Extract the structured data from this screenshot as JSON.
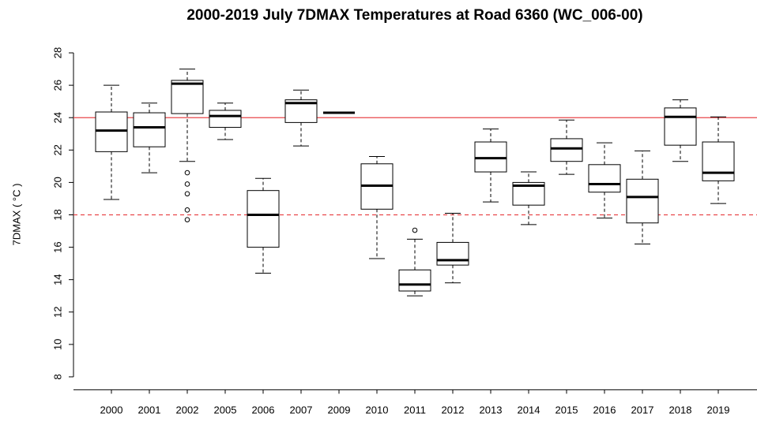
{
  "chart_data": {
    "type": "box",
    "title": "2000-2019 July 7DMAX Temperatures at Road 6360 (WC_006-00)",
    "y_label": "7DMAX ( °C )",
    "categories": [
      "2000",
      "2001",
      "2002",
      "2005",
      "2006",
      "2007",
      "2009",
      "2010",
      "2011",
      "2012",
      "2013",
      "2014",
      "2015",
      "2016",
      "2017",
      "2018",
      "2019"
    ],
    "boxes": [
      {
        "min": 18.95,
        "q1": 21.9,
        "median": 23.2,
        "q3": 24.35,
        "max": 26.0,
        "outliers": []
      },
      {
        "min": 20.6,
        "q1": 22.2,
        "median": 23.4,
        "q3": 24.3,
        "max": 24.9,
        "outliers": []
      },
      {
        "min": 21.3,
        "q1": 24.25,
        "median": 26.1,
        "q3": 26.3,
        "max": 27.0,
        "outliers": [
          20.6,
          19.9,
          19.3,
          18.3,
          17.7
        ]
      },
      {
        "min": 22.65,
        "q1": 23.4,
        "median": 24.1,
        "q3": 24.45,
        "max": 24.9,
        "outliers": []
      },
      {
        "min": 14.4,
        "q1": 16.0,
        "median": 18.0,
        "q3": 19.5,
        "max": 20.25,
        "outliers": []
      },
      {
        "min": 22.25,
        "q1": 23.7,
        "median": 24.9,
        "q3": 25.1,
        "max": 25.7,
        "outliers": []
      },
      {
        "min": 24.3,
        "q1": 24.3,
        "median": 24.3,
        "q3": 24.3,
        "max": 24.3,
        "outliers": []
      },
      {
        "min": 15.3,
        "q1": 18.35,
        "median": 19.8,
        "q3": 21.15,
        "max": 21.6,
        "outliers": []
      },
      {
        "min": 13.0,
        "q1": 13.3,
        "median": 13.7,
        "q3": 14.6,
        "max": 16.5,
        "outliers": [
          17.05
        ]
      },
      {
        "min": 13.8,
        "q1": 14.9,
        "median": 15.2,
        "q3": 16.3,
        "max": 18.1,
        "outliers": []
      },
      {
        "min": 18.8,
        "q1": 20.65,
        "median": 21.5,
        "q3": 22.5,
        "max": 23.3,
        "outliers": []
      },
      {
        "min": 17.4,
        "q1": 18.6,
        "median": 19.8,
        "q3": 20.0,
        "max": 20.65,
        "outliers": []
      },
      {
        "min": 20.5,
        "q1": 21.3,
        "median": 22.1,
        "q3": 22.7,
        "max": 23.85,
        "outliers": []
      },
      {
        "min": 17.8,
        "q1": 19.4,
        "median": 19.9,
        "q3": 21.1,
        "max": 22.45,
        "outliers": []
      },
      {
        "min": 16.2,
        "q1": 17.5,
        "median": 19.1,
        "q3": 20.2,
        "max": 21.95,
        "outliers": []
      },
      {
        "min": 21.3,
        "q1": 22.3,
        "median": 24.05,
        "q3": 24.6,
        "max": 25.1,
        "outliers": []
      },
      {
        "min": 18.7,
        "q1": 20.1,
        "median": 20.6,
        "q3": 22.5,
        "max": 24.05,
        "outliers": []
      }
    ],
    "ylim": [
      7.2,
      28.8
    ],
    "yticks": [
      8,
      10,
      12,
      14,
      16,
      18,
      20,
      22,
      24,
      26,
      28
    ],
    "reference_lines": [
      {
        "value": 24,
        "style": "solid",
        "color": "#e8474a"
      },
      {
        "value": 18,
        "style": "dashed",
        "color": "#e8474a"
      }
    ]
  }
}
